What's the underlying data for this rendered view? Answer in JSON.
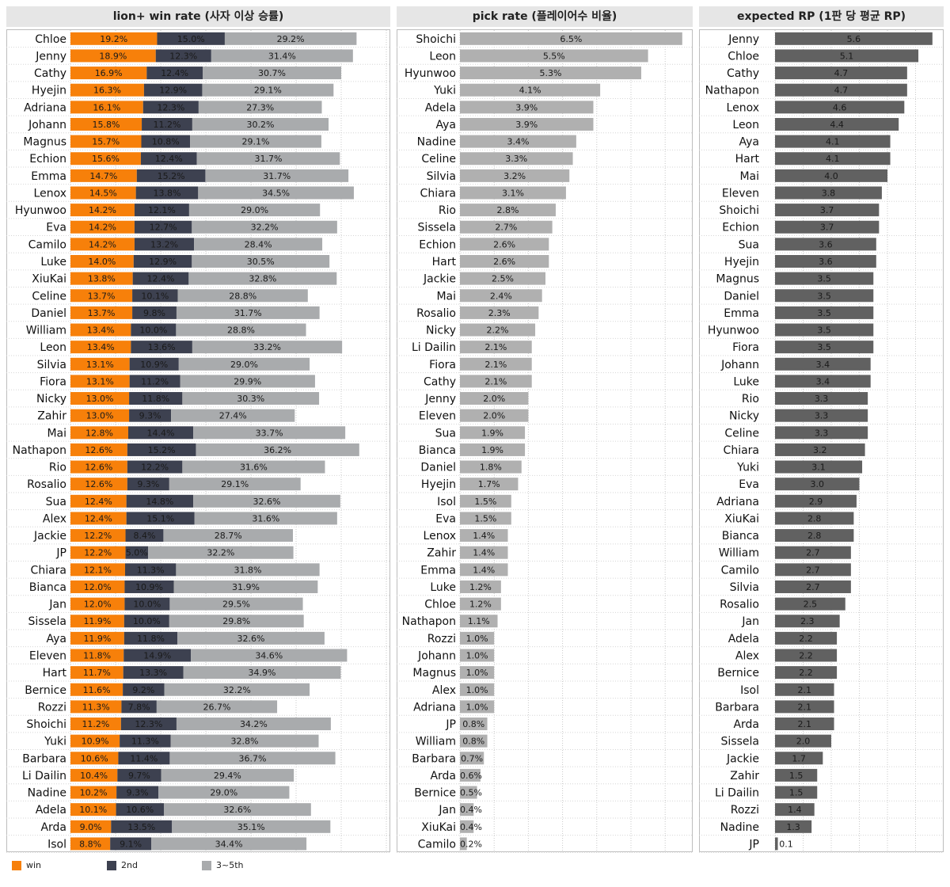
{
  "panels": {
    "win": {
      "title": "lion+ win rate (사자 이상 승률)"
    },
    "pick": {
      "title": "pick rate (플레이어수 비율)"
    },
    "rp": {
      "title": "expected RP (1판 당 평균 RP)"
    }
  },
  "legend": {
    "items": [
      {
        "label": "win",
        "color": "#f7800a"
      },
      {
        "label": "2nd",
        "color": "#3d4150"
      },
      {
        "label": "3~5th",
        "color": "#a9abad"
      }
    ]
  },
  "chart_data": [
    {
      "type": "bar",
      "stacked": true,
      "orientation": "horizontal",
      "title": "lion+ win rate (사자 이상 승률)",
      "xlim": [
        0,
        70
      ],
      "grid": true,
      "categories": [
        "Chloe",
        "Jenny",
        "Cathy",
        "Hyejin",
        "Adriana",
        "Johann",
        "Magnus",
        "Echion",
        "Emma",
        "Lenox",
        "Hyunwoo",
        "Eva",
        "Camilo",
        "Luke",
        "XiuKai",
        "Celine",
        "Daniel",
        "William",
        "Leon",
        "Silvia",
        "Fiora",
        "Nicky",
        "Zahir",
        "Mai",
        "Nathapon",
        "Rio",
        "Rosalio",
        "Sua",
        "Alex",
        "Jackie",
        "JP",
        "Chiara",
        "Bianca",
        "Jan",
        "Sissela",
        "Aya",
        "Eleven",
        "Hart",
        "Bernice",
        "Rozzi",
        "Shoichi",
        "Yuki",
        "Barbara",
        "Li Dailin",
        "Nadine",
        "Adela",
        "Arda",
        "Isol"
      ],
      "series": [
        {
          "name": "win",
          "color": "#f7800a",
          "values": [
            19.2,
            18.9,
            16.9,
            16.3,
            16.1,
            15.8,
            15.7,
            15.6,
            14.7,
            14.5,
            14.2,
            14.2,
            14.2,
            14.0,
            13.8,
            13.7,
            13.7,
            13.4,
            13.4,
            13.1,
            13.1,
            13.0,
            13.0,
            12.8,
            12.6,
            12.6,
            12.6,
            12.4,
            12.4,
            12.2,
            12.2,
            12.1,
            12.0,
            12.0,
            11.9,
            11.9,
            11.8,
            11.7,
            11.6,
            11.3,
            11.2,
            10.9,
            10.6,
            10.4,
            10.2,
            10.1,
            9.0,
            8.8
          ]
        },
        {
          "name": "2nd",
          "color": "#3d4150",
          "values": [
            15.0,
            12.3,
            12.4,
            12.9,
            12.3,
            11.2,
            10.8,
            12.4,
            15.2,
            13.8,
            12.1,
            12.7,
            13.2,
            12.9,
            12.4,
            10.1,
            9.8,
            10.0,
            13.6,
            10.9,
            11.2,
            11.8,
            9.3,
            14.4,
            15.2,
            12.2,
            9.3,
            14.8,
            15.1,
            8.4,
            5.0,
            11.3,
            10.9,
            10.0,
            10.0,
            11.8,
            14.9,
            13.3,
            9.2,
            7.8,
            12.3,
            11.3,
            11.4,
            9.7,
            9.3,
            10.6,
            13.5,
            9.1
          ]
        },
        {
          "name": "3~5th",
          "color": "#a9abad",
          "values": [
            29.2,
            31.4,
            30.7,
            29.1,
            27.3,
            30.2,
            29.1,
            31.7,
            31.7,
            34.5,
            29.0,
            32.2,
            28.4,
            30.5,
            32.8,
            28.8,
            31.7,
            28.8,
            33.2,
            29.0,
            29.9,
            30.3,
            27.4,
            33.7,
            36.2,
            31.6,
            29.1,
            32.6,
            31.6,
            28.7,
            32.2,
            31.8,
            31.9,
            29.5,
            29.8,
            32.6,
            34.6,
            34.9,
            32.2,
            26.7,
            34.2,
            32.8,
            36.7,
            29.4,
            29.0,
            32.6,
            35.1,
            34.4
          ]
        }
      ]
    },
    {
      "type": "bar",
      "orientation": "horizontal",
      "title": "pick rate (플레이어수 비율)",
      "xlim": [
        0,
        7
      ],
      "grid": true,
      "color": "#b0b0b0",
      "categories": [
        "Shoichi",
        "Leon",
        "Hyunwoo",
        "Yuki",
        "Adela",
        "Aya",
        "Nadine",
        "Celine",
        "Silvia",
        "Chiara",
        "Rio",
        "Sissela",
        "Echion",
        "Hart",
        "Jackie",
        "Mai",
        "Rosalio",
        "Nicky",
        "Li Dailin",
        "Fiora",
        "Cathy",
        "Jenny",
        "Eleven",
        "Sua",
        "Bianca",
        "Daniel",
        "Hyejin",
        "Isol",
        "Eva",
        "Lenox",
        "Zahir",
        "Emma",
        "Luke",
        "Chloe",
        "Nathapon",
        "Rozzi",
        "Johann",
        "Magnus",
        "Alex",
        "Adriana",
        "JP",
        "William",
        "Barbara",
        "Arda",
        "Bernice",
        "Jan",
        "XiuKai",
        "Camilo"
      ],
      "values": [
        6.5,
        5.5,
        5.3,
        4.1,
        3.9,
        3.9,
        3.4,
        3.3,
        3.2,
        3.1,
        2.8,
        2.7,
        2.6,
        2.6,
        2.5,
        2.4,
        2.3,
        2.2,
        2.1,
        2.1,
        2.1,
        2.0,
        2.0,
        1.9,
        1.9,
        1.8,
        1.7,
        1.5,
        1.5,
        1.4,
        1.4,
        1.4,
        1.2,
        1.2,
        1.1,
        1.0,
        1.0,
        1.0,
        1.0,
        1.0,
        0.8,
        0.8,
        0.7,
        0.6,
        0.5,
        0.4,
        0.4,
        0.2
      ],
      "value_suffix": "%"
    },
    {
      "type": "bar",
      "orientation": "horizontal",
      "title": "expected RP (1판 당 평균 RP)",
      "xlim": [
        0,
        5.8
      ],
      "grid": true,
      "color": "#616161",
      "categories": [
        "Jenny",
        "Chloe",
        "Cathy",
        "Nathapon",
        "Lenox",
        "Leon",
        "Aya",
        "Hart",
        "Mai",
        "Eleven",
        "Shoichi",
        "Echion",
        "Sua",
        "Hyejin",
        "Magnus",
        "Daniel",
        "Emma",
        "Hyunwoo",
        "Fiora",
        "Johann",
        "Luke",
        "Rio",
        "Nicky",
        "Celine",
        "Chiara",
        "Yuki",
        "Eva",
        "Adriana",
        "XiuKai",
        "Bianca",
        "William",
        "Camilo",
        "Silvia",
        "Rosalio",
        "Jan",
        "Adela",
        "Alex",
        "Bernice",
        "Isol",
        "Barbara",
        "Arda",
        "Sissela",
        "Jackie",
        "Zahir",
        "Li Dailin",
        "Rozzi",
        "Nadine",
        "JP"
      ],
      "values": [
        5.6,
        5.1,
        4.7,
        4.7,
        4.6,
        4.4,
        4.1,
        4.1,
        4.0,
        3.8,
        3.7,
        3.7,
        3.6,
        3.6,
        3.5,
        3.5,
        3.5,
        3.5,
        3.5,
        3.4,
        3.4,
        3.3,
        3.3,
        3.3,
        3.2,
        3.1,
        3.0,
        2.9,
        2.8,
        2.8,
        2.7,
        2.7,
        2.7,
        2.5,
        2.3,
        2.2,
        2.2,
        2.2,
        2.1,
        2.1,
        2.1,
        2.0,
        1.7,
        1.5,
        1.5,
        1.4,
        1.3,
        0.1
      ],
      "value_suffix": ""
    }
  ]
}
